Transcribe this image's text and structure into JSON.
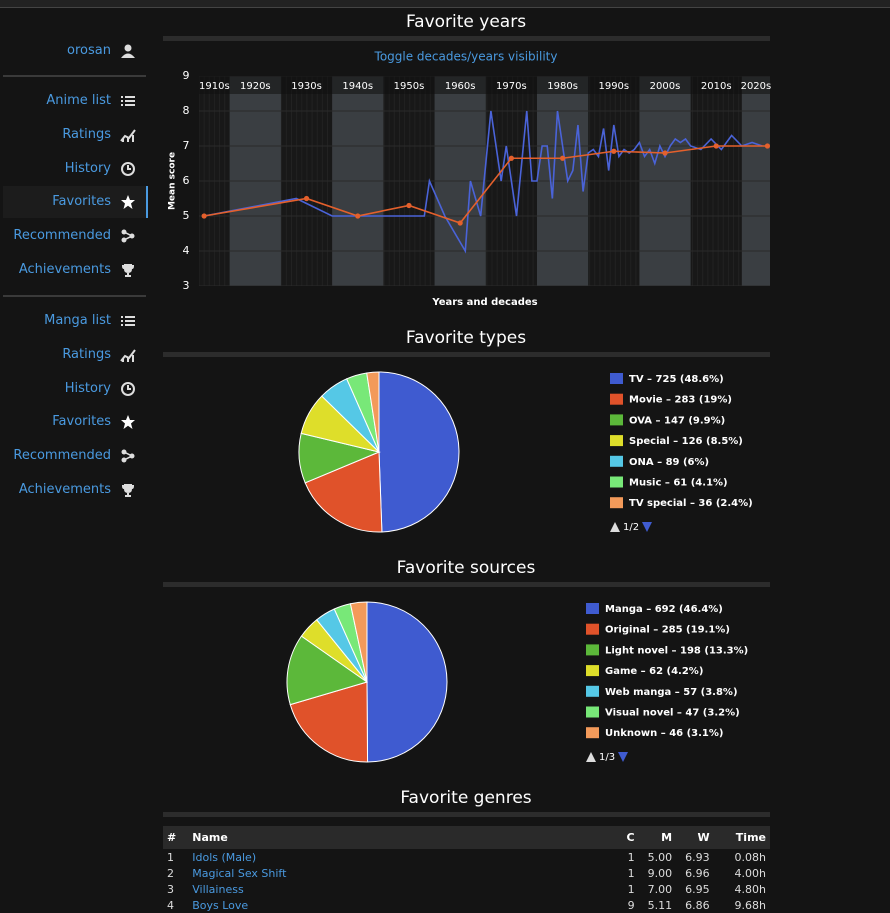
{
  "sidebar": {
    "user": "orosan",
    "groups": [
      {
        "items": [
          {
            "label": "Anime list",
            "icon": "list"
          },
          {
            "label": "Ratings",
            "icon": "chart"
          },
          {
            "label": "History",
            "icon": "history"
          },
          {
            "label": "Favorites",
            "icon": "star",
            "active": true
          },
          {
            "label": "Recommended",
            "icon": "rec"
          },
          {
            "label": "Achievements",
            "icon": "trophy"
          }
        ]
      },
      {
        "items": [
          {
            "label": "Manga list",
            "icon": "list"
          },
          {
            "label": "Ratings",
            "icon": "chart"
          },
          {
            "label": "History",
            "icon": "history"
          },
          {
            "label": "Favorites",
            "icon": "star"
          },
          {
            "label": "Recommended",
            "icon": "rec"
          },
          {
            "label": "Achievements",
            "icon": "trophy"
          }
        ]
      }
    ]
  },
  "chart_data": [
    {
      "type": "line",
      "title": "Favorite years",
      "toggle": "Toggle decades/years visibility",
      "ylabel": "Mean score",
      "xlabel": "Years and decades",
      "xlim": [
        1914,
        2025.5
      ],
      "ylim": [
        3,
        9
      ],
      "yticks": [
        3,
        4,
        5,
        6,
        7,
        8,
        9
      ],
      "xticks": [
        {
          "value": 1910,
          "label": "1910s"
        },
        {
          "value": 1920,
          "label": "1920s"
        },
        {
          "value": 1930,
          "label": "1930s"
        },
        {
          "value": 1940,
          "label": "1940s"
        },
        {
          "value": 1950,
          "label": "1950s"
        },
        {
          "value": 1960,
          "label": "1960s"
        },
        {
          "value": 1970,
          "label": "1970s"
        },
        {
          "value": 1980,
          "label": "1980s"
        },
        {
          "value": 1990,
          "label": "1990s"
        },
        {
          "value": 2000,
          "label": "2000s"
        },
        {
          "value": 2010,
          "label": "2010s"
        },
        {
          "value": 2020,
          "label": "2020s"
        }
      ],
      "band_color": "#3a3e42",
      "series": [
        {
          "color": "#4a63d8",
          "x": [
            1915,
            1933,
            1940,
            1958,
            1959,
            1962,
            1966,
            1967,
            1969,
            1971,
            1973,
            1974,
            1976,
            1978,
            1979,
            1980,
            1981,
            1982,
            1983,
            1984,
            1985,
            1986,
            1987,
            1988,
            1989,
            1990,
            1991,
            1992,
            1993,
            1994,
            1995,
            1996,
            1997,
            1998,
            1999,
            2000,
            2001,
            2002,
            2003,
            2004,
            2005,
            2006,
            2007,
            2008,
            2009,
            2010,
            2012,
            2014,
            2016,
            2018,
            2020,
            2022,
            2024
          ],
          "values": [
            5.0,
            5.5,
            5.0,
            5.0,
            6.0,
            5.0,
            4.0,
            6.0,
            5.0,
            8.0,
            6.0,
            7.0,
            5.0,
            8.0,
            6.0,
            6.0,
            7.0,
            7.0,
            5.5,
            8.0,
            7.0,
            6.0,
            6.3,
            7.6,
            5.7,
            6.8,
            6.9,
            6.7,
            7.5,
            6.3,
            7.6,
            6.7,
            6.9,
            6.8,
            6.9,
            7.1,
            6.7,
            6.9,
            6.5,
            7.0,
            6.7,
            7.0,
            7.2,
            7.1,
            7.2,
            7.0,
            6.9,
            7.2,
            6.9,
            7.3,
            7.0,
            7.1,
            7.0
          ]
        },
        {
          "color": "#e4602c",
          "markers": true,
          "x": [
            1915,
            1935,
            1945,
            1955,
            1965,
            1975,
            1985,
            1995,
            2005,
            2015,
            2025
          ],
          "values": [
            5.0,
            5.5,
            5.0,
            5.3,
            4.8,
            6.65,
            6.65,
            6.85,
            6.8,
            7.0,
            7.0
          ]
        }
      ]
    },
    {
      "type": "pie",
      "title": "Favorite types",
      "values": [
        725,
        283,
        147,
        126,
        89,
        61,
        36
      ],
      "value_labels": [
        "TV – 725 (48.6%)",
        "Movie – 283 (19%)",
        "OVA – 147 (9.9%)",
        "Special – 126 (8.5%)",
        "ONA – 89 (6%)",
        "Music – 61 (4.1%)",
        "TV special – 36 (2.4%)"
      ],
      "colors": [
        "#3f5bd0",
        "#e0522a",
        "#5cb83a",
        "#dede2a",
        "#55c8e6",
        "#78e878",
        "#f39a5a"
      ],
      "pager": "1/2"
    },
    {
      "type": "pie",
      "title": "Favorite sources",
      "values": [
        692,
        285,
        198,
        62,
        57,
        47,
        46
      ],
      "value_labels": [
        "Manga – 692 (46.4%)",
        "Original – 285 (19.1%)",
        "Light novel – 198 (13.3%)",
        "Game – 62 (4.2%)",
        "Web manga – 57 (3.8%)",
        "Visual novel – 47 (3.2%)",
        "Unknown – 46 (3.1%)"
      ],
      "colors": [
        "#3f5bd0",
        "#e0522a",
        "#5cb83a",
        "#dede2a",
        "#55c8e6",
        "#78e878",
        "#f39a5a"
      ],
      "pager": "1/3"
    }
  ],
  "genres": {
    "title": "Favorite genres",
    "headers": [
      "#",
      "Name",
      "C",
      "M",
      "W",
      "Time"
    ],
    "rows": [
      [
        "1",
        "Idols (Male)",
        "1",
        "5.00",
        "6.93",
        "0.08h"
      ],
      [
        "2",
        "Magical Sex Shift",
        "1",
        "9.00",
        "6.96",
        "4.00h"
      ],
      [
        "3",
        "Villainess",
        "1",
        "7.00",
        "6.95",
        "4.80h"
      ],
      [
        "4",
        "Boys Love",
        "9",
        "5.11",
        "6.86",
        "9.68h"
      ]
    ]
  }
}
